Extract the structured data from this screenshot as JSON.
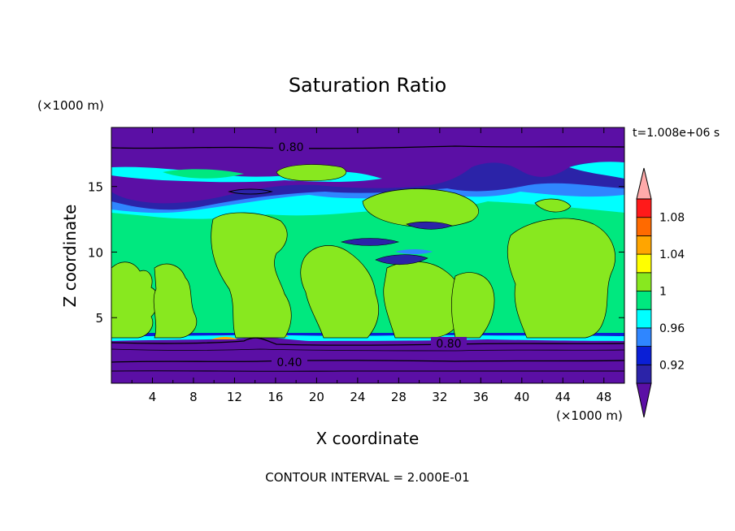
{
  "chart_data": {
    "type": "heatmap",
    "title": "Saturation Ratio",
    "xlabel": "X coordinate",
    "ylabel": "Z coordinate",
    "x_unit": "(×1000 m)",
    "z_unit": "(×1000 m)",
    "xlim": [
      0,
      50
    ],
    "ylim": [
      0,
      19.5
    ],
    "x_ticks": [
      4,
      8,
      12,
      16,
      20,
      24,
      28,
      32,
      36,
      40,
      44,
      48
    ],
    "y_ticks": [
      5,
      10,
      15
    ],
    "time_label": "t=1.008e+06 s",
    "footer": "CONTOUR INTERVAL = 2.000E-01",
    "contour_labels": [
      {
        "text": "0.80",
        "x": 17.5,
        "z": 18.1
      },
      {
        "text": "0.80",
        "x": 33.0,
        "z": 3.0
      },
      {
        "text": "0.40",
        "x": 17.5,
        "z": 1.6
      }
    ],
    "colorbar": {
      "levels": [
        0.92,
        0.96,
        1,
        1.04,
        1.08
      ],
      "level_labels": [
        "0.92",
        "0.96",
        "1",
        "1.04",
        "1.08"
      ],
      "colors": [
        "#5b0fa5",
        "#2b23a8",
        "#0a1fd6",
        "#2f86ff",
        "#00ffff",
        "#00e87f",
        "#88e81f",
        "#ffff00",
        "#ffa500",
        "#ff6a00",
        "#ff1a1a",
        "#ffaaaa"
      ]
    },
    "regions": [
      {
        "value": "<0.8",
        "color": "#5b0fa5",
        "z_range": [
          0,
          3.3
        ]
      },
      {
        "value": "1",
        "color": "#00e87f",
        "z_range": [
          3.5,
          13.5
        ]
      },
      {
        "value": "<0.8",
        "color": "#5b0fa5",
        "z_range": [
          18.2,
          19.5
        ]
      }
    ]
  }
}
